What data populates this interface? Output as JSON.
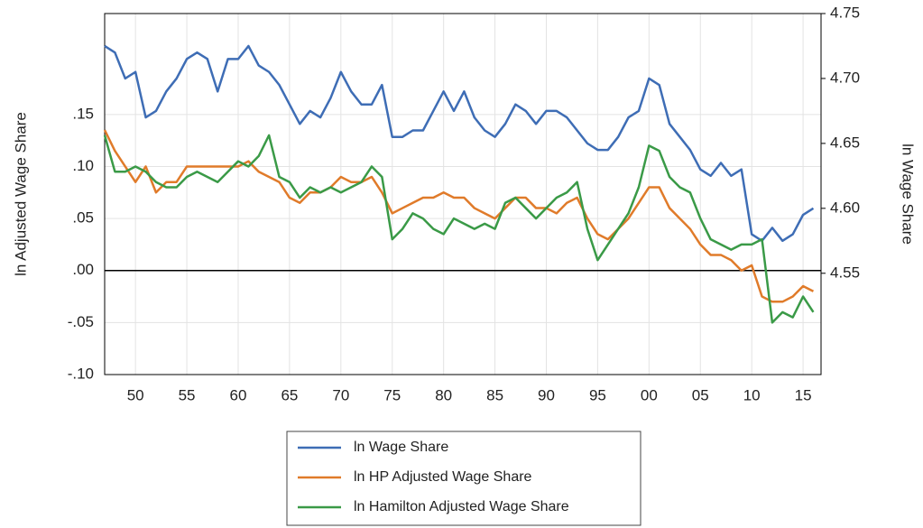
{
  "chart_data": {
    "type": "line",
    "y_label": "ln Adjusted Wage Share",
    "y2_label": "ln Wage Share",
    "x": [
      1947,
      1948,
      1949,
      1950,
      1951,
      1952,
      1953,
      1954,
      1955,
      1956,
      1957,
      1958,
      1959,
      1960,
      1961,
      1962,
      1963,
      1964,
      1965,
      1966,
      1967,
      1968,
      1969,
      1970,
      1971,
      1972,
      1973,
      1974,
      1975,
      1976,
      1977,
      1978,
      1979,
      1980,
      1981,
      1982,
      1983,
      1984,
      1985,
      1986,
      1987,
      1988,
      1989,
      1990,
      1991,
      1992,
      1993,
      1994,
      1995,
      1996,
      1997,
      1998,
      1999,
      2000,
      2001,
      2002,
      2003,
      2004,
      2005,
      2006,
      2007,
      2008,
      2009,
      2010,
      2011,
      2012,
      2013,
      2014,
      2015,
      2016
    ],
    "xlim": [
      1947,
      2016.75
    ],
    "xticks": [
      {
        "value": 1950,
        "label": "50"
      },
      {
        "value": 1955,
        "label": "55"
      },
      {
        "value": 1960,
        "label": "60"
      },
      {
        "value": 1965,
        "label": "65"
      },
      {
        "value": 1970,
        "label": "70"
      },
      {
        "value": 1975,
        "label": "75"
      },
      {
        "value": 1980,
        "label": "80"
      },
      {
        "value": 1985,
        "label": "85"
      },
      {
        "value": 1990,
        "label": "90"
      },
      {
        "value": 1995,
        "label": "95"
      },
      {
        "value": 2000,
        "label": "00"
      },
      {
        "value": 2005,
        "label": "05"
      },
      {
        "value": 2010,
        "label": "10"
      },
      {
        "value": 2015,
        "label": "15"
      }
    ],
    "ylim": [
      -0.1,
      0.247
    ],
    "yticks": [
      {
        "value": -0.1,
        "label": "-.10"
      },
      {
        "value": -0.05,
        "label": "-.05"
      },
      {
        "value": 0,
        "label": ".00"
      },
      {
        "value": 0.05,
        "label": ".05"
      },
      {
        "value": 0.1,
        "label": ".10"
      },
      {
        "value": 0.15,
        "label": ".15"
      }
    ],
    "y2lim": [
      4.472,
      4.75
    ],
    "y2ticks": [
      4.55,
      {
        "value": 4.6,
        "label": "4.60"
      },
      4.65,
      {
        "value": 4.7,
        "label": "4.70"
      },
      4.75
    ],
    "grid": true,
    "series": [
      {
        "name": "ln Wage Share",
        "color": "#3e6db5",
        "axis": "y2",
        "values": [
          4.725,
          4.72,
          4.7,
          4.705,
          4.67,
          4.675,
          4.69,
          4.7,
          4.715,
          4.72,
          4.715,
          4.69,
          4.715,
          4.715,
          4.725,
          4.71,
          4.705,
          4.695,
          4.68,
          4.665,
          4.675,
          4.67,
          4.685,
          4.705,
          4.69,
          4.68,
          4.68,
          4.695,
          4.655,
          4.655,
          4.66,
          4.66,
          4.675,
          4.69,
          4.675,
          4.69,
          4.67,
          4.66,
          4.655,
          4.665,
          4.68,
          4.675,
          4.665,
          4.675,
          4.675,
          4.67,
          4.66,
          4.65,
          4.645,
          4.645,
          4.655,
          4.67,
          4.675,
          4.7,
          4.695,
          4.665,
          4.655,
          4.645,
          4.63,
          4.625,
          4.635,
          4.625,
          4.63,
          4.58,
          4.575,
          4.585,
          4.575,
          4.58,
          4.595,
          4.6
        ]
      },
      {
        "name": "ln HP Adjusted Wage Share",
        "color": "#e07b2a",
        "values": [
          0.135,
          0.115,
          0.1,
          0.085,
          0.1,
          0.075,
          0.085,
          0.085,
          0.1,
          0.1,
          0.1,
          0.1,
          0.1,
          0.1,
          0.105,
          0.095,
          0.09,
          0.085,
          0.07,
          0.065,
          0.075,
          0.075,
          0.08,
          0.09,
          0.085,
          0.085,
          0.09,
          0.075,
          0.055,
          0.06,
          0.065,
          0.07,
          0.07,
          0.075,
          0.07,
          0.07,
          0.06,
          0.055,
          0.05,
          0.06,
          0.07,
          0.07,
          0.06,
          0.06,
          0.055,
          0.065,
          0.07,
          0.05,
          0.035,
          0.03,
          0.04,
          0.05,
          0.065,
          0.08,
          0.08,
          0.06,
          0.05,
          0.04,
          0.025,
          0.015,
          0.015,
          0.01,
          0.0,
          0.005,
          -0.025,
          -0.03,
          -0.03,
          -0.025,
          -0.015,
          -0.02
        ]
      },
      {
        "name": "ln Hamilton Adjusted Wage Share",
        "color": "#3a9a47",
        "values": [
          0.13,
          0.095,
          0.095,
          0.1,
          0.095,
          0.085,
          0.08,
          0.08,
          0.09,
          0.095,
          0.09,
          0.085,
          0.095,
          0.105,
          0.1,
          0.11,
          0.13,
          0.09,
          0.085,
          0.07,
          0.08,
          0.075,
          0.08,
          0.075,
          0.08,
          0.085,
          0.1,
          0.09,
          0.03,
          0.04,
          0.055,
          0.05,
          0.04,
          0.035,
          0.05,
          0.045,
          0.04,
          0.045,
          0.04,
          0.065,
          0.07,
          0.06,
          0.05,
          0.06,
          0.07,
          0.075,
          0.085,
          0.04,
          0.01,
          0.025,
          0.04,
          0.055,
          0.08,
          0.12,
          0.115,
          0.09,
          0.08,
          0.075,
          0.05,
          0.03,
          0.025,
          0.02,
          0.025,
          0.025,
          0.03,
          -0.05,
          -0.04,
          -0.045,
          -0.025,
          -0.04
        ]
      }
    ]
  }
}
